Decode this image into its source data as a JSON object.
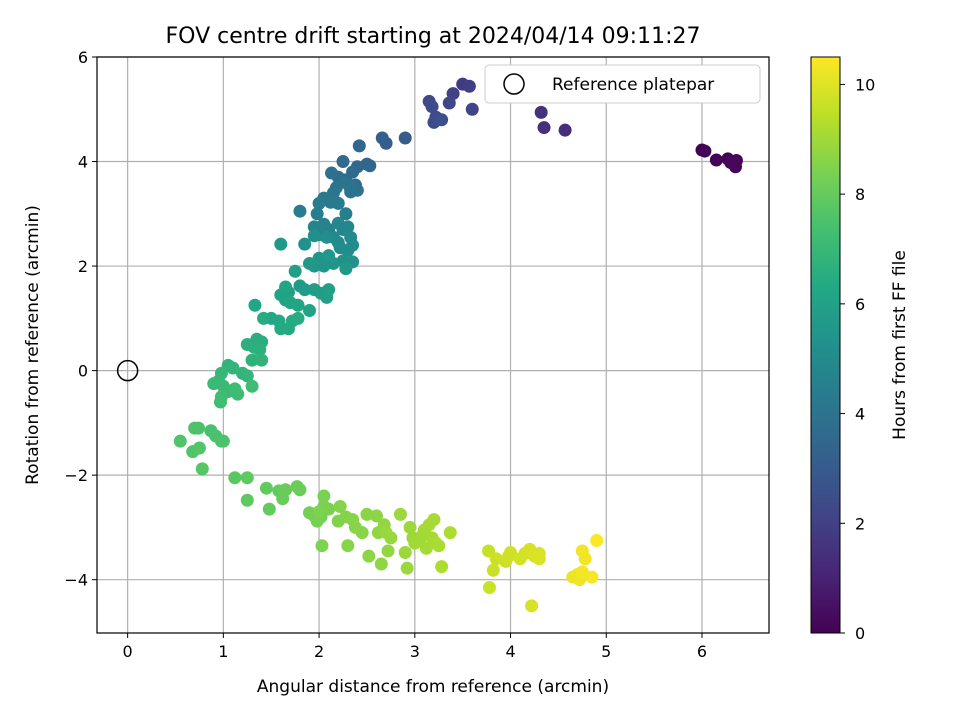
{
  "chart_data": {
    "type": "scatter",
    "title": "FOV centre drift starting at 2024/04/14 09:11:27",
    "xlabel": "Angular distance from reference (arcmin)",
    "ylabel": "Rotation from reference (arcmin)",
    "xlim": [
      -0.32,
      6.7
    ],
    "ylim": [
      -5.02,
      6.0
    ],
    "xticks": [
      0,
      1,
      2,
      3,
      4,
      5,
      6
    ],
    "yticks": [
      -4,
      -2,
      0,
      2,
      4,
      6
    ],
    "xtick_labels": [
      "0",
      "1",
      "2",
      "3",
      "4",
      "5",
      "6"
    ],
    "ytick_labels": [
      "−4",
      "−2",
      "0",
      "2",
      "4",
      "6"
    ],
    "grid": true,
    "colormap": "viridis",
    "colorbar": {
      "label": "Hours from first FF file",
      "range": [
        0,
        10.5
      ],
      "ticks": [
        0,
        2,
        4,
        6,
        8,
        10
      ],
      "tick_labels": [
        "0",
        "2",
        "4",
        "6",
        "8",
        "10"
      ]
    },
    "legend": {
      "position": "top-right",
      "label": "Reference platepar",
      "marker": "open-circle"
    },
    "reference_point": [
      0,
      0
    ],
    "points": [
      [
        6.0,
        4.22,
        0.02
      ],
      [
        6.03,
        4.2,
        0.05
      ],
      [
        6.15,
        4.03,
        0.1
      ],
      [
        6.27,
        4.05,
        0.12
      ],
      [
        6.36,
        4.02,
        0.15
      ],
      [
        6.35,
        3.9,
        0.17
      ],
      [
        6.3,
        3.98,
        0.2
      ],
      [
        4.57,
        4.6,
        1.3
      ],
      [
        4.35,
        4.65,
        1.4
      ],
      [
        4.32,
        4.94,
        1.5
      ],
      [
        3.5,
        5.48,
        1.8
      ],
      [
        3.57,
        5.44,
        1.9
      ],
      [
        3.4,
        5.3,
        2.0
      ],
      [
        3.6,
        5.0,
        2.1
      ],
      [
        3.36,
        5.12,
        2.2
      ],
      [
        3.15,
        5.15,
        2.3
      ],
      [
        3.18,
        5.05,
        2.4
      ],
      [
        3.22,
        4.85,
        2.45
      ],
      [
        3.2,
        4.75,
        2.5
      ],
      [
        3.28,
        4.8,
        2.55
      ],
      [
        2.9,
        4.45,
        3.0
      ],
      [
        2.7,
        4.35,
        3.1
      ],
      [
        2.66,
        4.45,
        3.15
      ],
      [
        2.5,
        3.95,
        3.4
      ],
      [
        2.53,
        3.92,
        3.45
      ],
      [
        2.4,
        3.9,
        3.5
      ],
      [
        2.42,
        4.3,
        3.5
      ],
      [
        2.35,
        3.8,
        3.6
      ],
      [
        2.25,
        4.0,
        3.6
      ],
      [
        2.28,
        3.65,
        3.7
      ],
      [
        2.2,
        3.7,
        3.75
      ],
      [
        2.38,
        3.55,
        3.8
      ],
      [
        2.4,
        3.45,
        3.85
      ],
      [
        2.13,
        3.78,
        3.9
      ],
      [
        2.33,
        3.42,
        3.95
      ],
      [
        2.18,
        3.5,
        4.0
      ],
      [
        2.27,
        3.6,
        4.0
      ],
      [
        2.32,
        3.52,
        4.05
      ],
      [
        2.15,
        3.4,
        4.1
      ],
      [
        2.05,
        3.3,
        4.2
      ],
      [
        2.12,
        3.22,
        4.25
      ],
      [
        2.2,
        3.2,
        4.3
      ],
      [
        2.0,
        3.2,
        4.35
      ],
      [
        1.98,
        3.0,
        4.4
      ],
      [
        1.8,
        3.05,
        4.45
      ],
      [
        2.28,
        3.0,
        4.5
      ],
      [
        2.05,
        2.8,
        4.6
      ],
      [
        2.1,
        2.7,
        4.65
      ],
      [
        1.95,
        2.75,
        4.7
      ],
      [
        2.0,
        2.6,
        4.75
      ],
      [
        2.2,
        2.82,
        4.8
      ],
      [
        2.25,
        2.7,
        4.85
      ],
      [
        2.3,
        2.75,
        4.85
      ],
      [
        2.15,
        2.55,
        4.9
      ],
      [
        2.2,
        2.45,
        4.95
      ],
      [
        2.33,
        2.55,
        5.0
      ],
      [
        2.35,
        2.4,
        5.05
      ],
      [
        2.3,
        2.3,
        5.1
      ],
      [
        2.22,
        2.35,
        5.1
      ],
      [
        2.08,
        2.55,
        5.15
      ],
      [
        1.95,
        2.58,
        5.2
      ],
      [
        1.85,
        2.42,
        5.25
      ],
      [
        2.35,
        2.08,
        5.3
      ],
      [
        2.25,
        2.1,
        5.35
      ],
      [
        2.15,
        2.05,
        5.4
      ],
      [
        2.05,
        2.0,
        5.45
      ],
      [
        2.0,
        2.15,
        5.45
      ],
      [
        1.95,
        2.0,
        5.5
      ],
      [
        1.9,
        2.05,
        5.55
      ],
      [
        2.1,
        2.2,
        5.55
      ],
      [
        1.6,
        2.42,
        5.6
      ],
      [
        2.28,
        1.95,
        5.6
      ],
      [
        1.8,
        1.62,
        5.7
      ],
      [
        1.85,
        1.55,
        5.75
      ],
      [
        1.95,
        1.55,
        5.8
      ],
      [
        2.02,
        1.48,
        5.85
      ],
      [
        2.08,
        1.4,
        5.85
      ],
      [
        2.1,
        1.55,
        5.9
      ],
      [
        1.75,
        1.9,
        5.9
      ],
      [
        1.68,
        1.5,
        5.95
      ],
      [
        1.65,
        1.35,
        6.0
      ],
      [
        1.6,
        1.45,
        6.05
      ],
      [
        1.9,
        1.15,
        6.05
      ],
      [
        1.7,
        1.3,
        6.1
      ],
      [
        1.78,
        1.25,
        6.15
      ],
      [
        1.65,
        1.6,
        6.15
      ],
      [
        1.33,
        1.25,
        6.2
      ],
      [
        1.5,
        1.0,
        6.2
      ],
      [
        1.58,
        0.95,
        6.3
      ],
      [
        1.6,
        0.8,
        6.35
      ],
      [
        1.68,
        0.8,
        6.35
      ],
      [
        1.72,
        0.95,
        6.4
      ],
      [
        1.78,
        1.0,
        6.45
      ],
      [
        1.42,
        1.0,
        6.45
      ],
      [
        1.35,
        0.6,
        6.5
      ],
      [
        1.4,
        0.55,
        6.55
      ],
      [
        1.32,
        0.45,
        6.6
      ],
      [
        1.25,
        0.5,
        6.6
      ],
      [
        1.38,
        0.4,
        6.65
      ],
      [
        1.3,
        0.2,
        6.7
      ],
      [
        1.4,
        0.2,
        6.75
      ],
      [
        1.05,
        0.1,
        6.8
      ],
      [
        1.1,
        0.05,
        6.85
      ],
      [
        1.2,
        -0.05,
        6.85
      ],
      [
        1.25,
        -0.1,
        6.9
      ],
      [
        0.98,
        -0.05,
        6.95
      ],
      [
        0.95,
        -0.2,
        7.0
      ],
      [
        0.9,
        -0.25,
        7.05
      ],
      [
        1.0,
        -0.3,
        7.05
      ],
      [
        1.05,
        -0.4,
        7.1
      ],
      [
        1.15,
        -0.45,
        7.15
      ],
      [
        1.12,
        -0.35,
        7.15
      ],
      [
        1.3,
        -0.3,
        7.2
      ],
      [
        0.98,
        -0.5,
        7.2
      ],
      [
        0.97,
        -0.6,
        7.25
      ],
      [
        0.87,
        -1.15,
        7.4
      ],
      [
        0.92,
        -1.25,
        7.45
      ],
      [
        0.98,
        -1.35,
        7.5
      ],
      [
        1.0,
        -1.35,
        7.5
      ],
      [
        0.7,
        -1.1,
        7.55
      ],
      [
        0.74,
        -1.1,
        7.55
      ],
      [
        0.55,
        -1.35,
        7.6
      ],
      [
        0.68,
        -1.55,
        7.6
      ],
      [
        0.75,
        -1.48,
        7.65
      ],
      [
        0.78,
        -1.88,
        7.7
      ],
      [
        1.12,
        -2.05,
        7.8
      ],
      [
        1.25,
        -2.05,
        7.85
      ],
      [
        1.25,
        -2.48,
        7.85
      ],
      [
        1.45,
        -2.25,
        7.95
      ],
      [
        1.48,
        -2.65,
        8.0
      ],
      [
        1.58,
        -2.3,
        8.0
      ],
      [
        1.65,
        -2.28,
        8.05
      ],
      [
        1.62,
        -2.45,
        8.05
      ],
      [
        1.8,
        -2.28,
        8.1
      ],
      [
        1.77,
        -2.22,
        8.1
      ],
      [
        1.9,
        -2.72,
        8.3
      ],
      [
        1.95,
        -2.78,
        8.3
      ],
      [
        1.98,
        -2.88,
        8.35
      ],
      [
        2.02,
        -2.8,
        8.35
      ],
      [
        2.05,
        -2.6,
        8.4
      ],
      [
        2.05,
        -2.4,
        8.4
      ],
      [
        2.1,
        -2.65,
        8.4
      ],
      [
        2.03,
        -3.35,
        8.45
      ],
      [
        2.0,
        -2.7,
        8.45
      ],
      [
        2.2,
        -2.88,
        8.5
      ],
      [
        2.28,
        -2.8,
        8.55
      ],
      [
        2.22,
        -2.6,
        8.55
      ],
      [
        2.3,
        -3.35,
        8.6
      ],
      [
        2.35,
        -2.85,
        8.6
      ],
      [
        2.38,
        -3.0,
        8.6
      ],
      [
        2.45,
        -3.1,
        8.65
      ],
      [
        2.5,
        -2.75,
        8.65
      ],
      [
        2.52,
        -3.55,
        8.7
      ],
      [
        2.6,
        -2.78,
        8.7
      ],
      [
        2.62,
        -3.1,
        8.75
      ],
      [
        2.65,
        -3.7,
        8.75
      ],
      [
        2.68,
        -2.95,
        8.8
      ],
      [
        2.72,
        -3.45,
        8.8
      ],
      [
        2.75,
        -3.2,
        8.85
      ],
      [
        2.7,
        -3.1,
        8.85
      ],
      [
        2.85,
        -2.75,
        8.9
      ],
      [
        2.9,
        -3.48,
        8.9
      ],
      [
        2.92,
        -3.78,
        8.9
      ],
      [
        2.95,
        -3.0,
        8.95
      ],
      [
        2.98,
        -3.2,
        8.95
      ],
      [
        3.0,
        -3.3,
        9.0
      ],
      [
        3.05,
        -3.25,
        9.0
      ],
      [
        3.08,
        -3.15,
        9.0
      ],
      [
        3.1,
        -3.05,
        9.05
      ],
      [
        3.12,
        -3.4,
        9.05
      ],
      [
        3.15,
        -2.95,
        9.1
      ],
      [
        3.18,
        -3.2,
        9.1
      ],
      [
        3.2,
        -2.85,
        9.1
      ],
      [
        3.22,
        -3.3,
        9.15
      ],
      [
        3.25,
        -3.35,
        9.15
      ],
      [
        3.28,
        -3.75,
        9.2
      ],
      [
        3.37,
        -3.1,
        9.2
      ],
      [
        3.77,
        -3.45,
        9.6
      ],
      [
        3.78,
        -4.15,
        9.65
      ],
      [
        3.82,
        -3.82,
        9.65
      ],
      [
        3.85,
        -3.6,
        9.7
      ],
      [
        3.95,
        -3.65,
        9.7
      ],
      [
        3.98,
        -3.55,
        9.75
      ],
      [
        4.0,
        -3.48,
        9.75
      ],
      [
        4.1,
        -3.6,
        9.8
      ],
      [
        4.15,
        -3.5,
        9.8
      ],
      [
        4.2,
        -3.42,
        9.85
      ],
      [
        4.22,
        -4.5,
        9.85
      ],
      [
        4.25,
        -3.55,
        9.9
      ],
      [
        4.3,
        -3.5,
        9.9
      ],
      [
        4.3,
        -3.6,
        9.95
      ],
      [
        4.65,
        -3.95,
        10.2
      ],
      [
        4.7,
        -3.9,
        10.25
      ],
      [
        4.72,
        -4.0,
        10.25
      ],
      [
        4.75,
        -3.45,
        10.3
      ],
      [
        4.78,
        -3.6,
        10.3
      ],
      [
        4.75,
        -3.85,
        10.35
      ],
      [
        4.85,
        -3.95,
        10.4
      ],
      [
        4.9,
        -3.25,
        10.45
      ]
    ]
  }
}
